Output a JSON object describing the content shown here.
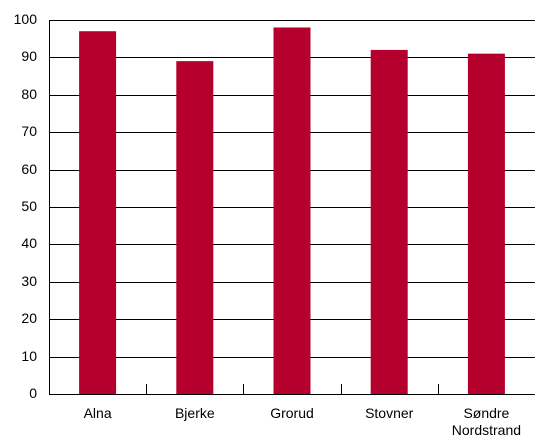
{
  "chart_data": {
    "type": "bar",
    "categories": [
      [
        "Alna"
      ],
      [
        "Bjerke"
      ],
      [
        "Grorud"
      ],
      [
        "Stovner"
      ],
      [
        "Søndre",
        "Nordstrand"
      ]
    ],
    "values": [
      97,
      89,
      98,
      92,
      91
    ],
    "ylim": [
      0,
      100
    ],
    "yticks": [
      "0",
      "10",
      "20",
      "30",
      "40",
      "50",
      "60",
      "70",
      "80",
      "90",
      "100"
    ],
    "grid": true,
    "bar_color": "#B5002E",
    "title": "",
    "xlabel": "",
    "ylabel": ""
  }
}
